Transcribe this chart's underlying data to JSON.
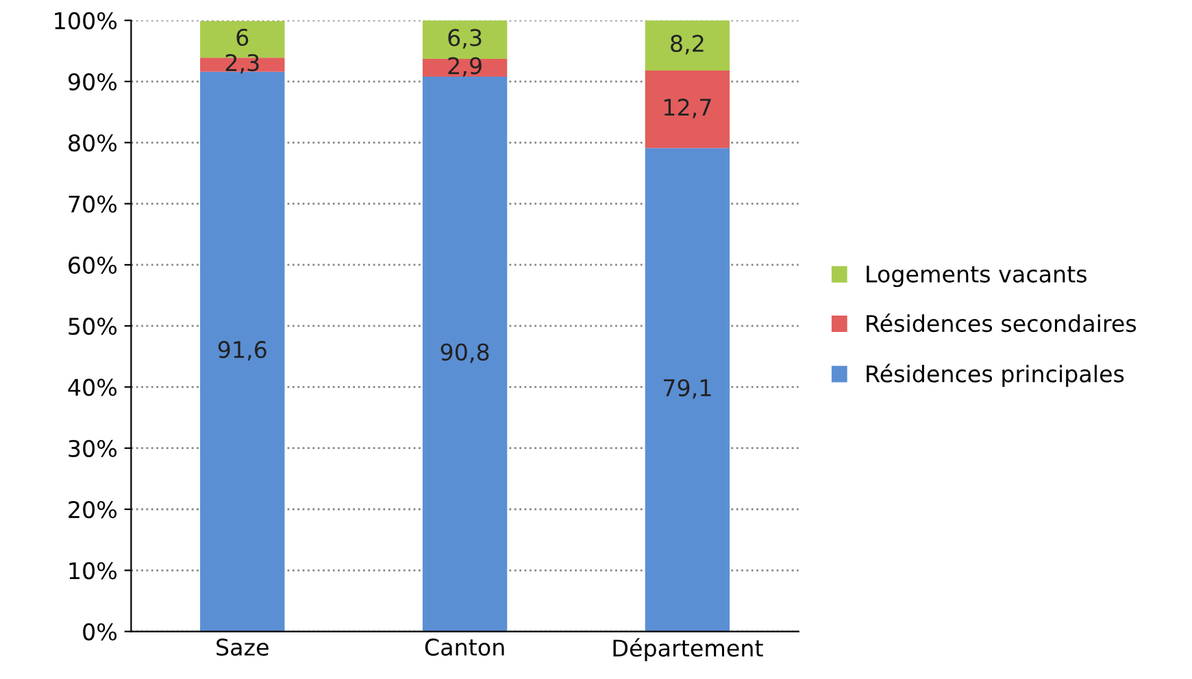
{
  "chart_data": {
    "type": "bar",
    "stacked": true,
    "categories": [
      "Saze",
      "Canton",
      "Département"
    ],
    "series": [
      {
        "name": "Résidences principales",
        "color": "#5b8fd4",
        "values": [
          91.6,
          90.8,
          79.1
        ],
        "value_labels": [
          "91,6",
          "90,8",
          "79,1"
        ]
      },
      {
        "name": "Résidences secondaires",
        "color": "#e35d5d",
        "values": [
          2.3,
          2.9,
          12.7
        ],
        "value_labels": [
          "2,3",
          "2,9",
          "12,7"
        ]
      },
      {
        "name": "Logements vacants",
        "color": "#a9cc4e",
        "values": [
          6,
          6.3,
          8.2
        ],
        "value_labels": [
          "6",
          "6,3",
          "8,2"
        ]
      }
    ],
    "ylim": [
      0,
      100
    ],
    "yticks": [
      {
        "value": 0,
        "label": "0%"
      },
      {
        "value": 10,
        "label": "10%"
      },
      {
        "value": 20,
        "label": "20%"
      },
      {
        "value": 30,
        "label": "30%"
      },
      {
        "value": 40,
        "label": "40%"
      },
      {
        "value": 50,
        "label": "50%"
      },
      {
        "value": 60,
        "label": "60%"
      },
      {
        "value": 70,
        "label": "70%"
      },
      {
        "value": 80,
        "label": "80%"
      },
      {
        "value": 90,
        "label": "90%"
      },
      {
        "value": 100,
        "label": "100%"
      }
    ],
    "grid": "y",
    "legend": "right"
  }
}
